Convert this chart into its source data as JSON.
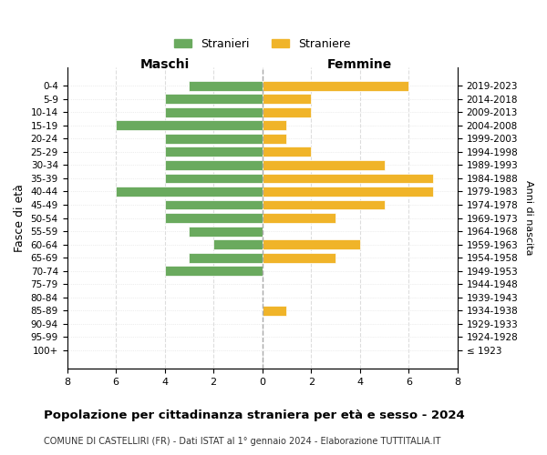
{
  "age_groups": [
    "100+",
    "95-99",
    "90-94",
    "85-89",
    "80-84",
    "75-79",
    "70-74",
    "65-69",
    "60-64",
    "55-59",
    "50-54",
    "45-49",
    "40-44",
    "35-39",
    "30-34",
    "25-29",
    "20-24",
    "15-19",
    "10-14",
    "5-9",
    "0-4"
  ],
  "birth_years": [
    "≤ 1923",
    "1924-1928",
    "1929-1933",
    "1934-1938",
    "1939-1943",
    "1944-1948",
    "1949-1953",
    "1954-1958",
    "1959-1963",
    "1964-1968",
    "1969-1973",
    "1974-1978",
    "1979-1983",
    "1984-1988",
    "1989-1993",
    "1994-1998",
    "1999-2003",
    "2004-2008",
    "2009-2013",
    "2014-2018",
    "2019-2023"
  ],
  "maschi": [
    0,
    0,
    0,
    0,
    0,
    0,
    4,
    3,
    2,
    3,
    4,
    4,
    6,
    4,
    4,
    4,
    4,
    6,
    4,
    4,
    3
  ],
  "femmine": [
    0,
    0,
    0,
    1,
    0,
    0,
    0,
    3,
    4,
    0,
    3,
    5,
    7,
    7,
    5,
    2,
    1,
    1,
    2,
    2,
    6
  ],
  "color_maschi": "#6aaa5e",
  "color_femmine": "#f0b429",
  "background_color": "#ffffff",
  "grid_color": "#dddddd",
  "title": "Popolazione per cittadinanza straniera per età e sesso - 2024",
  "subtitle": "COMUNE DI CASTELLIRI (FR) - Dati ISTAT al 1° gennaio 2024 - Elaborazione TUTTITALIA.IT",
  "xlabel_left": "Maschi",
  "xlabel_right": "Femmine",
  "ylabel_left": "Fasce di età",
  "ylabel_right": "Anni di nascita",
  "legend_stranieri": "Stranieri",
  "legend_straniere": "Straniere",
  "xlim": 8
}
